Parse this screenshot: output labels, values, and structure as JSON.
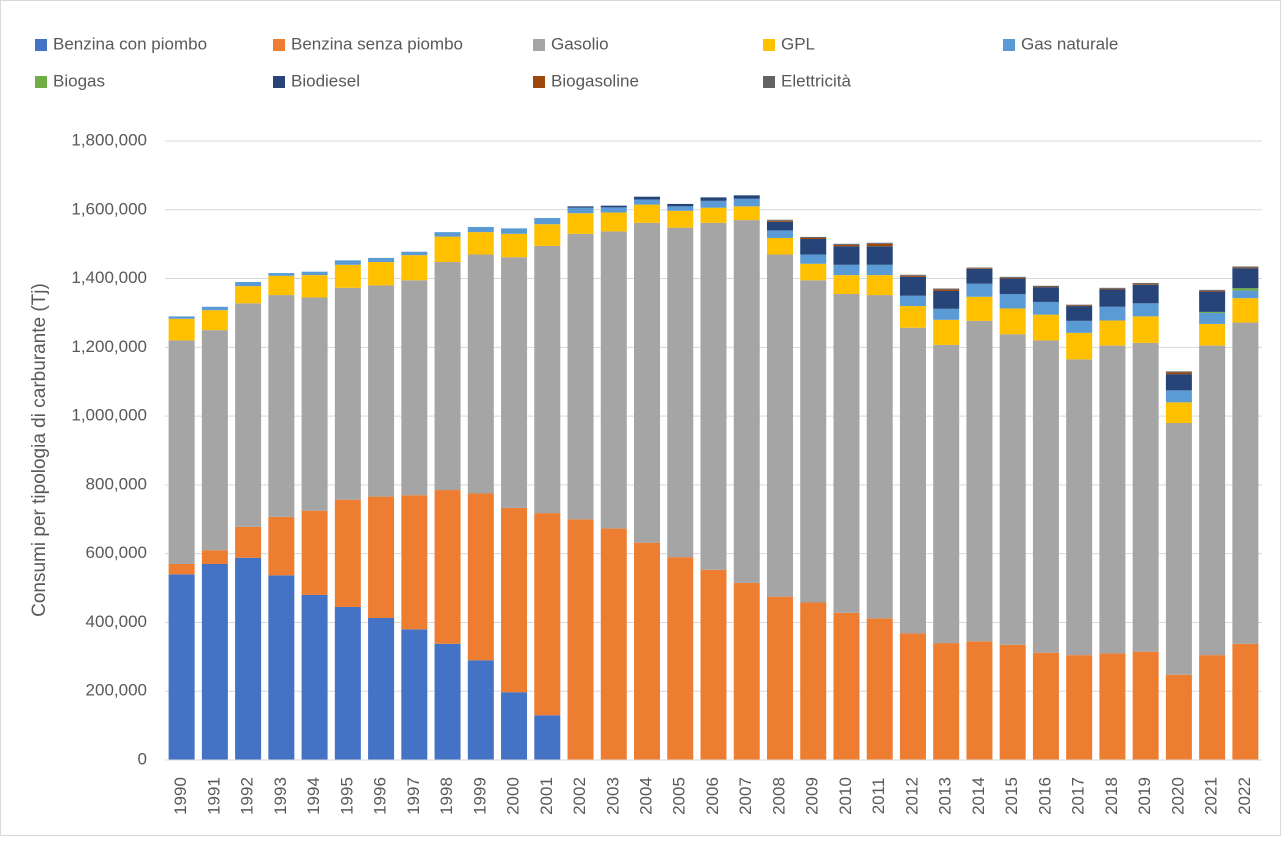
{
  "chart_data": {
    "type": "stacked-bar",
    "y_label": "Consumi per tipologia di carburante (Tj)",
    "categories": [
      "1990",
      "1991",
      "1992",
      "1993",
      "1994",
      "1995",
      "1996",
      "1997",
      "1998",
      "1999",
      "2000",
      "2001",
      "2002",
      "2003",
      "2004",
      "2005",
      "2006",
      "2007",
      "2008",
      "2009",
      "2010",
      "2011",
      "2012",
      "2013",
      "2014",
      "2015",
      "2016",
      "2017",
      "2018",
      "2019",
      "2020",
      "2021",
      "2022"
    ],
    "ylim": [
      0,
      1800000
    ],
    "yticks": [
      0,
      {
        "value": 200000,
        "label": "200,000"
      },
      {
        "value": 400000,
        "label": "400,000"
      },
      {
        "value": 600000,
        "label": "600,000"
      },
      {
        "value": 800000,
        "label": "800,000"
      },
      {
        "value": 1000000,
        "label": "1,000,000"
      },
      {
        "value": 1200000,
        "label": "1,200,000"
      },
      {
        "value": 1400000,
        "label": "1,400,000"
      },
      {
        "value": 1600000,
        "label": "1,600,000"
      },
      {
        "value": 1800000,
        "label": "1,800,000"
      }
    ],
    "grid": true,
    "legend_position": "top",
    "series": [
      {
        "name": "Benzina con piombo",
        "color": "#4472c4",
        "values": [
          540000,
          570000,
          588000,
          537000,
          480000,
          445000,
          413000,
          380000,
          338000,
          290000,
          197000,
          130000,
          0,
          0,
          0,
          0,
          0,
          0,
          0,
          0,
          0,
          0,
          0,
          0,
          0,
          0,
          0,
          0,
          0,
          0,
          0,
          0,
          0
        ]
      },
      {
        "name": "Benzina senza piombo",
        "color": "#ed7d31",
        "values": [
          30000,
          40000,
          90000,
          170000,
          245000,
          312000,
          353000,
          390000,
          447000,
          485000,
          536000,
          588000,
          700000,
          673000,
          632000,
          590000,
          553000,
          515000,
          475000,
          458000,
          428000,
          412000,
          368000,
          340000,
          345000,
          335000,
          312000,
          305000,
          310000,
          315000,
          248000,
          305000,
          338000
        ]
      },
      {
        "name": "Gasolio",
        "color": "#a5a5a5",
        "values": [
          650000,
          640000,
          650000,
          645000,
          620000,
          616000,
          614000,
          625000,
          663000,
          695000,
          729000,
          777000,
          830000,
          864000,
          930000,
          958000,
          1009000,
          1055000,
          995000,
          937000,
          927000,
          940000,
          889000,
          867000,
          932000,
          903000,
          908000,
          860000,
          895000,
          898000,
          732000,
          900000,
          934000
        ]
      },
      {
        "name": "GPL",
        "color": "#ffc000",
        "values": [
          63000,
          58000,
          50000,
          56000,
          65000,
          67000,
          68000,
          73000,
          74000,
          65000,
          68000,
          63000,
          60000,
          55000,
          53000,
          49000,
          44000,
          40000,
          48000,
          48000,
          55000,
          58000,
          63000,
          73000,
          70000,
          75000,
          75000,
          77000,
          73000,
          77000,
          60000,
          63000,
          71000
        ]
      },
      {
        "name": "Gas naturale",
        "color": "#5b9bd5",
        "values": [
          7000,
          10000,
          12000,
          8000,
          10000,
          13000,
          12000,
          10000,
          13000,
          15000,
          16000,
          18000,
          16000,
          15000,
          15000,
          13000,
          20000,
          22000,
          22000,
          27000,
          30000,
          30000,
          30000,
          32000,
          38000,
          42000,
          37000,
          35000,
          40000,
          38000,
          35000,
          32000,
          22000
        ]
      },
      {
        "name": "Biogas",
        "color": "#70ad47",
        "values": [
          0,
          0,
          0,
          0,
          0,
          0,
          0,
          0,
          0,
          0,
          0,
          0,
          0,
          0,
          0,
          0,
          0,
          0,
          0,
          0,
          0,
          0,
          0,
          0,
          0,
          0,
          0,
          0,
          0,
          0,
          0,
          3000,
          7000
        ]
      },
      {
        "name": "Biodiesel",
        "color": "#264478",
        "values": [
          0,
          0,
          0,
          0,
          0,
          0,
          0,
          0,
          0,
          0,
          0,
          0,
          4000,
          5000,
          8000,
          7000,
          10000,
          10000,
          25000,
          45000,
          54000,
          54000,
          55000,
          52000,
          43000,
          45000,
          43000,
          43000,
          50000,
          54000,
          47000,
          59000,
          58000
        ]
      },
      {
        "name": "Biogasoline",
        "color": "#9e480e",
        "values": [
          0,
          0,
          0,
          0,
          0,
          0,
          0,
          0,
          0,
          0,
          0,
          0,
          0,
          0,
          0,
          0,
          0,
          0,
          3000,
          3000,
          4000,
          7000,
          3000,
          4000,
          2000,
          2000,
          2000,
          2000,
          2000,
          2000,
          5000,
          2000,
          2000
        ]
      },
      {
        "name": "Elettricità",
        "color": "#636363",
        "values": [
          0,
          0,
          0,
          0,
          0,
          0,
          0,
          0,
          0,
          0,
          0,
          0,
          0,
          0,
          0,
          0,
          0,
          0,
          3000,
          3000,
          3000,
          3000,
          3000,
          3000,
          2000,
          3000,
          2000,
          2000,
          3000,
          3000,
          3000,
          3000,
          3000
        ]
      }
    ]
  }
}
